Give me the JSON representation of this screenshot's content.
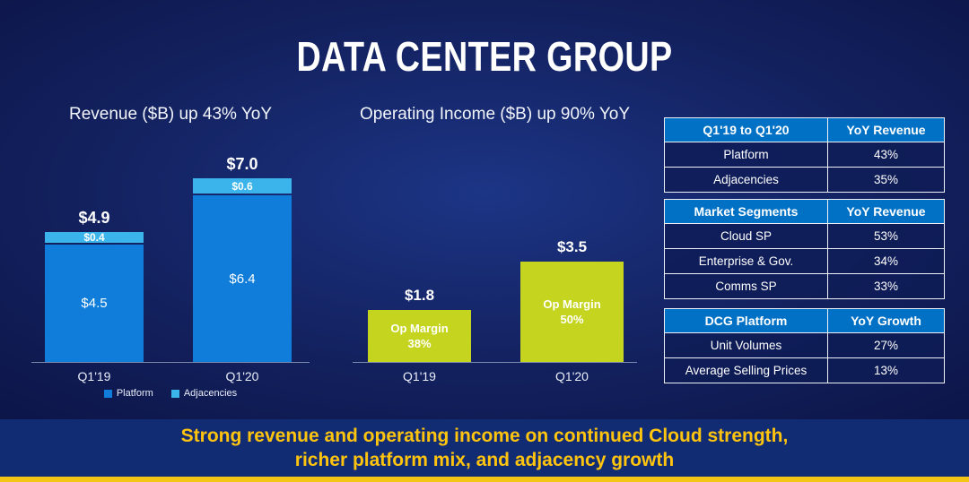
{
  "slide_title": "DATA CENTER GROUP",
  "chart_data": [
    {
      "type": "bar",
      "stacked": true,
      "title": "Revenue ($B) up 43% YoY",
      "categories": [
        "Q1'19",
        "Q1'20"
      ],
      "series": [
        {
          "name": "Platform",
          "values": [
            4.5,
            6.4
          ],
          "labels": [
            "$4.5",
            "$6.4"
          ],
          "color": "#0f7dd9"
        },
        {
          "name": "Adjacencies",
          "values": [
            0.4,
            0.6
          ],
          "labels": [
            "$0.4",
            "$0.6"
          ],
          "color": "#3ab4ea"
        }
      ],
      "totals": [
        4.9,
        7.0
      ],
      "total_labels": [
        "$4.9",
        "$7.0"
      ],
      "ylim": [
        0,
        7.5
      ],
      "legend_position": "bottom",
      "grid": false
    },
    {
      "type": "bar",
      "stacked": false,
      "title": "Operating Income ($B) up 90% YoY",
      "categories": [
        "Q1'19",
        "Q1'20"
      ],
      "values": [
        1.8,
        3.5
      ],
      "value_labels": [
        "$1.8",
        "$3.5"
      ],
      "annotation_title": "Op Margin",
      "margins": [
        "38%",
        "50%"
      ],
      "color": "#c4d41f",
      "ylim": [
        0,
        4
      ],
      "grid": false
    }
  ],
  "tables": [
    {
      "header": [
        "Q1'19 to Q1'20",
        "YoY Revenue"
      ],
      "rows": [
        [
          "Platform",
          "43%"
        ],
        [
          "Adjacencies",
          "35%"
        ]
      ]
    },
    {
      "header": [
        "Market Segments",
        "YoY Revenue"
      ],
      "rows": [
        [
          "Cloud SP",
          "53%"
        ],
        [
          "Enterprise & Gov.",
          "34%"
        ],
        [
          "Comms SP",
          "33%"
        ]
      ]
    },
    {
      "header": [
        "DCG Platform",
        "YoY Growth"
      ],
      "rows": [
        [
          "Unit Volumes",
          "27%"
        ],
        [
          "Average Selling Prices",
          "13%"
        ]
      ]
    }
  ],
  "footer": {
    "line1": "Strong revenue and operating income on continued Cloud strength,",
    "line2": "richer platform mix, and adjacency growth"
  },
  "colors": {
    "background_navy": "#13215f",
    "table_header_blue": "#0071c5",
    "platform_blue": "#0f7dd9",
    "adjacency_blue": "#3ab4ea",
    "op_income_green": "#c4d41f",
    "accent_yellow": "#ffc40e"
  }
}
